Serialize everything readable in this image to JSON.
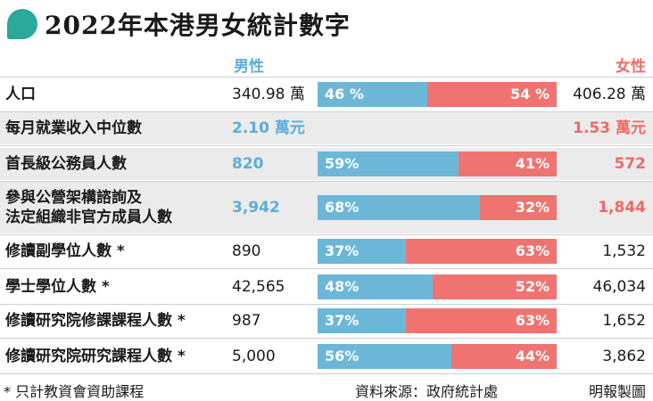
{
  "title": "2022年本港男女統計數字",
  "headers": {
    "male": "男性",
    "female": "女性"
  },
  "colors": {
    "male": "#6cb7d8",
    "female": "#ef7471",
    "accent": "#2aa89b"
  },
  "chart_data": {
    "type": "bar",
    "stacked": true,
    "categories": [
      "人口",
      "每月就業收入中位數",
      "首長級公務員人數",
      "參與公營架構諮詢及法定組織非官方成員人數",
      "修讀副學位人數 *",
      "學士學位人數 *",
      "修讀研究院修課課程人數 *",
      "修讀研究院研究課程人數 *"
    ],
    "series": [
      {
        "name": "男性",
        "values": [
          46,
          null,
          59,
          68,
          37,
          48,
          37,
          56
        ]
      },
      {
        "name": "女性",
        "values": [
          54,
          null,
          41,
          32,
          63,
          52,
          63,
          44
        ]
      }
    ]
  },
  "rows": [
    {
      "label_lines": [
        "人口"
      ],
      "male": "340.98 萬",
      "female": "406.28 萬",
      "mpct": "46 %",
      "fpct": "54 %",
      "bold": false
    },
    {
      "label_lines": [
        "每月就業收入中位數"
      ],
      "male": "2.10 萬元",
      "female": "1.53 萬元",
      "mpct": "",
      "fpct": "",
      "bold": true
    },
    {
      "label_lines": [
        "首長級公務員人數"
      ],
      "male": "820",
      "female": "572",
      "mpct": "59%",
      "fpct": "41%",
      "bold": true
    },
    {
      "label_lines": [
        "參與公營架構諮詢及",
        "法定組織非官方成員人數"
      ],
      "male": "3,942",
      "female": "1,844",
      "mpct": "68%",
      "fpct": "32%",
      "bold": true
    },
    {
      "label_lines": [
        "修讀副學位人數 *"
      ],
      "male": "890",
      "female": "1,532",
      "mpct": "37%",
      "fpct": "63%",
      "bold": false
    },
    {
      "label_lines": [
        "學士學位人數 *"
      ],
      "male": "42,565",
      "female": "46,034",
      "mpct": "48%",
      "fpct": "52%",
      "bold": false
    },
    {
      "label_lines": [
        "修讀研究院修課課程人數 *"
      ],
      "male": "987",
      "female": "1,652",
      "mpct": "37%",
      "fpct": "63%",
      "bold": false
    },
    {
      "label_lines": [
        "修讀研究院研究課程人數 *"
      ],
      "male": "5,000",
      "female": "3,862",
      "mpct": "56%",
      "fpct": "44%",
      "bold": false
    }
  ],
  "footer": {
    "note": "* 只計教資會資助課程",
    "source": "資料來源：政府統計處",
    "credit": "明報製圖"
  }
}
